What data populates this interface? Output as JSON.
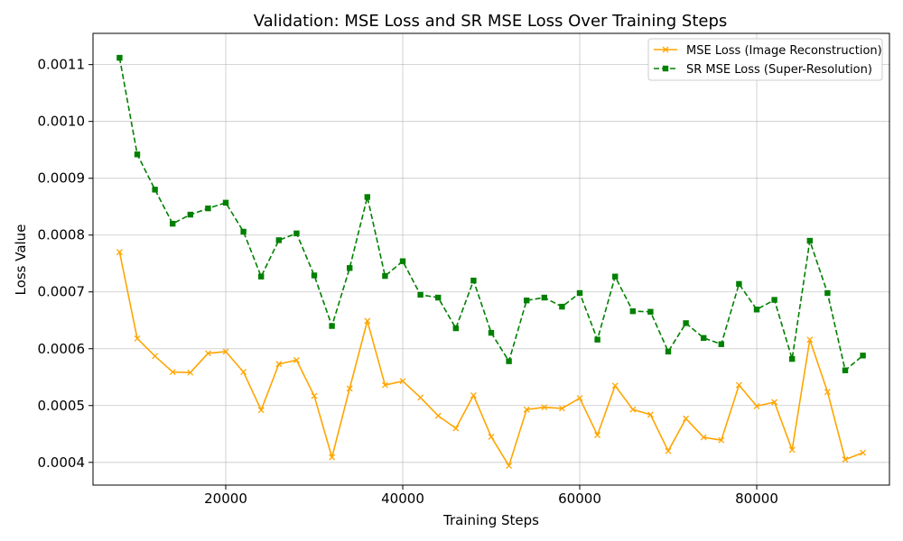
{
  "chart_data": {
    "type": "line",
    "title": "Validation: MSE Loss and SR MSE Loss Over Training Steps",
    "xlabel": "Training Steps",
    "ylabel": "Loss Value",
    "xlim": [
      5000,
      95000
    ],
    "ylim": [
      0.00036,
      0.001155
    ],
    "xticks": [
      20000,
      40000,
      60000,
      80000
    ],
    "yticks": [
      0.0004,
      0.0005,
      0.0006,
      0.0007,
      0.0008,
      0.0009,
      0.001,
      0.0011
    ],
    "grid": true,
    "legend_position": "top-right",
    "x": [
      8000,
      10000,
      12000,
      14000,
      16000,
      18000,
      20000,
      22000,
      24000,
      26000,
      28000,
      30000,
      32000,
      34000,
      36000,
      38000,
      40000,
      42000,
      44000,
      46000,
      48000,
      50000,
      52000,
      54000,
      56000,
      58000,
      60000,
      62000,
      64000,
      66000,
      68000,
      70000,
      72000,
      74000,
      76000,
      78000,
      80000,
      82000,
      84000,
      86000,
      88000,
      90000,
      92000
    ],
    "series": [
      {
        "name": "MSE Loss (Image Reconstruction)",
        "color": "#FFA500",
        "line_style": "solid",
        "marker": "x",
        "values": [
          0.00077,
          0.000618,
          0.000587,
          0.000559,
          0.000558,
          0.000592,
          0.000595,
          0.000559,
          0.000492,
          0.000573,
          0.00058,
          0.000517,
          0.000409,
          0.00053,
          0.000649,
          0.000536,
          0.000543,
          0.000514,
          0.000482,
          0.00046,
          0.000518,
          0.000445,
          0.000394,
          0.000493,
          0.000497,
          0.000495,
          0.000513,
          0.000448,
          0.000535,
          0.000493,
          0.000484,
          0.00042,
          0.000477,
          0.000444,
          0.000439,
          0.000536,
          0.000499,
          0.000506,
          0.000422,
          0.000616,
          0.000524,
          0.000405,
          0.000417
        ]
      },
      {
        "name": "SR MSE Loss (Super-Resolution)",
        "color": "#008000",
        "line_style": "dashed",
        "marker": "s",
        "values": [
          0.001112,
          0.000942,
          0.00088,
          0.00082,
          0.000836,
          0.000847,
          0.000857,
          0.000806,
          0.000727,
          0.000791,
          0.000803,
          0.000729,
          0.00064,
          0.000742,
          0.000867,
          0.000728,
          0.000754,
          0.000695,
          0.00069,
          0.000636,
          0.00072,
          0.000628,
          0.000578,
          0.000685,
          0.00069,
          0.000674,
          0.000698,
          0.000616,
          0.000727,
          0.000666,
          0.000665,
          0.000595,
          0.000645,
          0.000619,
          0.000608,
          0.000714,
          0.000669,
          0.000686,
          0.000582,
          0.00079,
          0.000698,
          0.000562,
          0.000588
        ]
      }
    ]
  }
}
